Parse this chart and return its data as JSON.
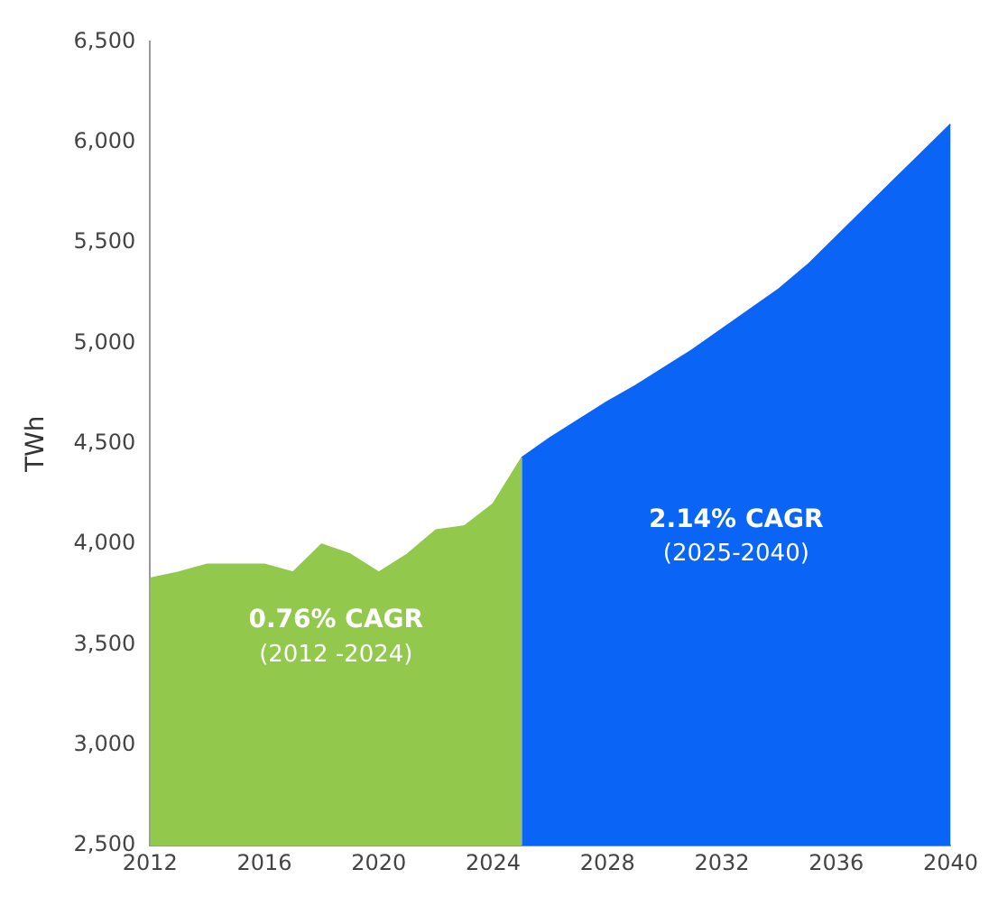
{
  "chart_data": {
    "type": "area",
    "ylabel": "TWh",
    "xlim": [
      2012,
      2040
    ],
    "xticks": [
      2012,
      2016,
      2020,
      2024,
      2028,
      2032,
      2036,
      2040
    ],
    "ylim": [
      2500,
      6500
    ],
    "yticks": [
      {
        "value": 2500,
        "label": "2,500"
      },
      {
        "value": 3000,
        "label": "3,000"
      },
      {
        "value": 3500,
        "label": "3,500"
      },
      {
        "value": 4000,
        "label": "4,000"
      },
      {
        "value": 4500,
        "label": "4,500"
      },
      {
        "value": 5000,
        "label": "5,000"
      },
      {
        "value": 5500,
        "label": "5,500"
      },
      {
        "value": 6000,
        "label": "6,000"
      },
      {
        "value": 6500,
        "label": "6,500"
      }
    ],
    "grid": false,
    "legend": false,
    "series": [
      {
        "color": "#92c94c",
        "x": [
          2012,
          2013,
          2014,
          2015,
          2016,
          2017,
          2018,
          2019,
          2020,
          2021,
          2022,
          2023,
          2024,
          2025
        ],
        "values": [
          3830,
          3860,
          3900,
          3900,
          3900,
          3860,
          4000,
          3950,
          3860,
          3950,
          4070,
          4090,
          4200,
          4430
        ]
      },
      {
        "color": "#0a64f5",
        "x": [
          2025,
          2026,
          2027,
          2028,
          2029,
          2030,
          2031,
          2032,
          2033,
          2034,
          2035,
          2036,
          2037,
          2038,
          2039,
          2040
        ],
        "values": [
          4430,
          4530,
          4620,
          4710,
          4790,
          4880,
          4970,
          5070,
          5170,
          5270,
          5390,
          5530,
          5670,
          5810,
          5950,
          6090
        ]
      }
    ],
    "annotations": [
      "0.76% CAGR",
      "(2012 -2024)",
      "2.14% CAGR",
      "(2025-2040)"
    ]
  }
}
